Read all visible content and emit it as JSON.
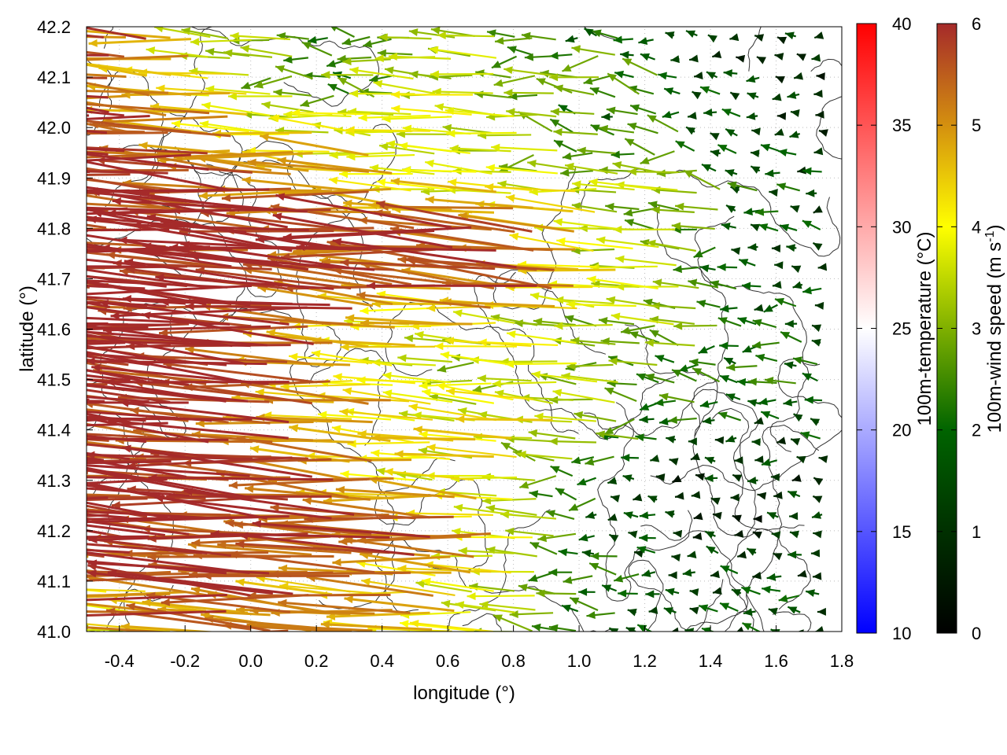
{
  "chart_data": {
    "type": "vector-field",
    "xlabel": "longitude (°)",
    "ylabel": "latitude (°)",
    "xlim": [
      -0.5,
      1.8
    ],
    "ylim": [
      41.0,
      42.2
    ],
    "xticks": [
      "-0.4",
      "-0.2",
      "0.0",
      "0.2",
      "0.4",
      "0.6",
      "0.8",
      "1.0",
      "1.2",
      "1.4",
      "1.6",
      "1.8"
    ],
    "xtick_values": [
      -0.4,
      -0.2,
      0.0,
      0.2,
      0.4,
      0.6,
      0.8,
      1.0,
      1.2,
      1.4,
      1.6,
      1.8
    ],
    "yticks": [
      "41.0",
      "41.1",
      "41.2",
      "41.3",
      "41.4",
      "41.5",
      "41.6",
      "41.7",
      "41.8",
      "41.9",
      "42.0",
      "42.1",
      "42.2"
    ],
    "ytick_values": [
      41.0,
      41.1,
      41.2,
      41.3,
      41.4,
      41.5,
      41.6,
      41.7,
      41.8,
      41.9,
      42.0,
      42.1,
      42.2
    ],
    "grid": true,
    "speed_field": {
      "units": "m s-1",
      "lon": [
        -0.5,
        -0.3,
        -0.1,
        0.1,
        0.3,
        0.5,
        0.7,
        0.9,
        1.1,
        1.3,
        1.5,
        1.7
      ],
      "lat": [
        42.2,
        42.1,
        42.0,
        41.9,
        41.8,
        41.7,
        41.6,
        41.5,
        41.4,
        41.3,
        41.2,
        41.1,
        41.0
      ],
      "speed": [
        [
          5.5,
          5.5,
          4,
          3,
          2.5,
          3,
          3,
          2,
          2,
          1.5,
          1,
          1
        ],
        [
          5.5,
          5,
          4,
          3,
          2.5,
          3,
          3.5,
          3,
          3,
          2,
          1,
          1
        ],
        [
          6,
          6,
          5,
          4,
          3.5,
          4,
          3.5,
          3,
          2,
          2,
          1.5,
          1
        ],
        [
          6,
          6,
          6,
          5.5,
          5,
          4,
          3.5,
          3.5,
          3.5,
          3,
          2,
          1.5
        ],
        [
          6,
          6,
          6,
          6,
          6,
          6,
          6,
          5,
          3.5,
          3,
          2,
          1.5
        ],
        [
          6,
          6,
          6,
          6,
          6,
          5,
          6,
          6,
          4,
          3,
          1.5,
          1.5
        ],
        [
          6,
          6,
          6,
          6,
          5,
          4,
          4,
          3.5,
          3,
          3,
          2,
          1.5
        ],
        [
          6,
          6,
          6,
          6,
          5,
          4,
          3,
          4,
          3,
          2.5,
          2,
          2
        ],
        [
          6,
          6,
          6,
          6,
          5,
          4.5,
          4,
          4,
          3,
          2,
          1.5,
          1.5
        ],
        [
          6,
          6,
          6,
          6,
          5.5,
          4,
          4,
          3,
          1.5,
          1,
          1,
          1
        ],
        [
          6,
          6,
          6,
          6,
          6,
          6,
          5,
          3,
          1.5,
          1,
          1,
          1
        ],
        [
          5,
          5,
          6,
          6,
          5,
          5,
          4,
          3,
          2,
          1.5,
          1.5,
          1.5
        ],
        [
          3,
          4,
          5,
          5,
          5,
          4.5,
          4,
          3,
          2,
          1.5,
          1.5,
          1.5
        ]
      ],
      "mean_direction_deg": 176
    },
    "colorbars": [
      {
        "label": "100m-temperature (°C)",
        "range": [
          10,
          40
        ],
        "ticks": [
          "10",
          "15",
          "20",
          "25",
          "30",
          "35",
          "40"
        ],
        "tick_values": [
          10,
          15,
          20,
          25,
          30,
          35,
          40
        ],
        "stops": [
          {
            "v": 10,
            "c": "#0000ff"
          },
          {
            "v": 25,
            "c": "#ffffff"
          },
          {
            "v": 40,
            "c": "#ff0000"
          }
        ]
      },
      {
        "label_main": "100m-wind speed (m s",
        "label_sup": "-1",
        "label_end": ")",
        "range": [
          0,
          6
        ],
        "ticks": [
          "0",
          "1",
          "2",
          "3",
          "4",
          "5",
          "6"
        ],
        "tick_values": [
          0,
          1,
          2,
          3,
          4,
          5,
          6
        ],
        "stops": [
          {
            "v": 0,
            "c": "#000000"
          },
          {
            "v": 1,
            "c": "#003000"
          },
          {
            "v": 2,
            "c": "#006400"
          },
          {
            "v": 3,
            "c": "#7fb000"
          },
          {
            "v": 4,
            "c": "#ffff00"
          },
          {
            "v": 5,
            "c": "#d4900f"
          },
          {
            "v": 6,
            "c": "#a52a2a"
          }
        ]
      }
    ]
  }
}
